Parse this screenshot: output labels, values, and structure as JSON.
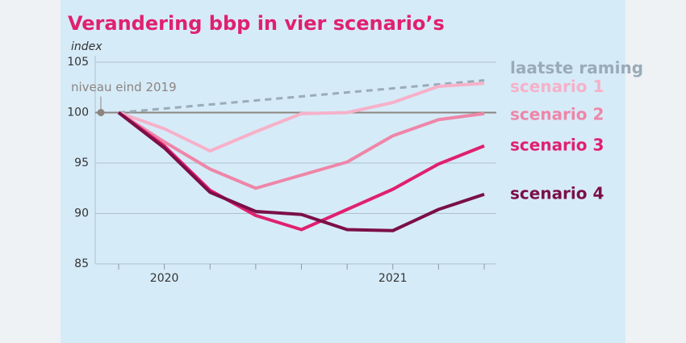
{
  "chart_data": {
    "type": "line",
    "title": "Verandering bbp in vier scenario’s",
    "y_axis_label": "index",
    "categories": [
      null,
      "2020",
      null,
      null,
      null,
      null,
      "2021",
      null,
      null
    ],
    "ylim": [
      85,
      105
    ],
    "yticks": [
      85,
      90,
      95,
      100,
      105
    ],
    "grid": true,
    "reference_line": {
      "value": 100,
      "label": "niveau eind 2019",
      "color": "#8c8480"
    },
    "series": [
      {
        "name": "laatste raming",
        "color": "#9aabb8",
        "dashed": true,
        "values": [
          100,
          100.4,
          100.8,
          101.2,
          101.6,
          102.0,
          102.4,
          102.8,
          103.2
        ]
      },
      {
        "name": "scenario 1",
        "color": "#f6b1c9",
        "values": [
          100,
          98.4,
          96.2,
          98.1,
          99.9,
          100,
          101,
          102.6,
          102.9
        ]
      },
      {
        "name": "scenario 2",
        "color": "#ee86a8",
        "values": [
          100,
          97.1,
          94.4,
          92.5,
          93.8,
          95.1,
          97.7,
          99.3,
          99.9
        ]
      },
      {
        "name": "scenario 3",
        "color": "#e0206f",
        "values": [
          100,
          96.7,
          92.3,
          89.8,
          88.4,
          90.4,
          92.4,
          94.9,
          96.7
        ]
      },
      {
        "name": "scenario 4",
        "color": "#7a1046",
        "values": [
          100,
          96.5,
          92.1,
          90.2,
          89.9,
          88.4,
          88.3,
          90.4,
          91.9
        ]
      }
    ]
  }
}
